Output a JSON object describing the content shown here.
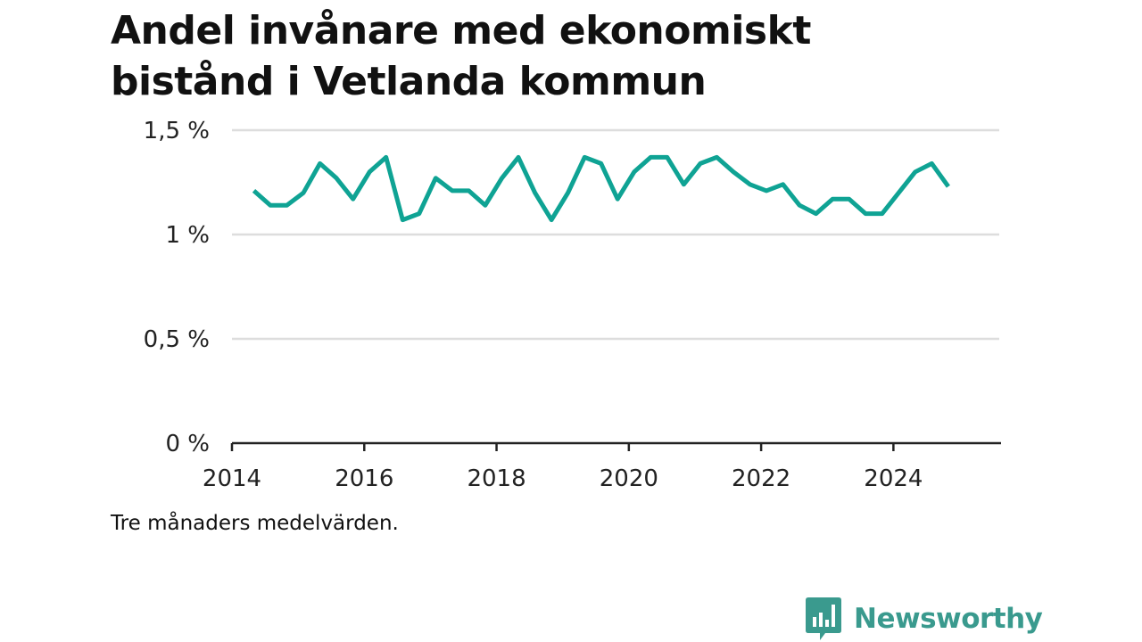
{
  "title_lines": [
    "Andel invånare med ekonomiskt",
    "bistånd i Vetlanda kommun"
  ],
  "note": "Tre månaders medelvärden.",
  "brand": {
    "name": "Newsworthy",
    "color": "#3a9a8e"
  },
  "colors": {
    "line": "#0fa394",
    "grid": "#dddddd",
    "axis": "#222222"
  },
  "chart_data": {
    "type": "line",
    "x_axis": {
      "min": 2014,
      "max": 2025.6,
      "ticks": [
        2014,
        2016,
        2018,
        2020,
        2022,
        2024
      ]
    },
    "y_axis": {
      "min": 0,
      "max": 1.5,
      "ticks": [
        0,
        0.5,
        1,
        1.5
      ],
      "tick_labels": [
        "0 %",
        "0,5 %",
        "1 %",
        "1,5 %"
      ]
    },
    "grid": "horizontal",
    "series": [
      {
        "x": [
          2014.33,
          2014.58,
          2014.83,
          2015.08,
          2015.33,
          2015.58,
          2015.83,
          2016.08,
          2016.33,
          2016.58,
          2016.83,
          2017.08,
          2017.33,
          2017.58,
          2017.83,
          2018.08,
          2018.33,
          2018.58,
          2018.83,
          2019.08,
          2019.33,
          2019.58,
          2019.83,
          2020.08,
          2020.33,
          2020.58,
          2020.83,
          2021.08,
          2021.33,
          2021.58,
          2021.83,
          2022.08,
          2022.33,
          2022.58,
          2022.83,
          2023.08,
          2023.33,
          2023.58,
          2023.83,
          2024.08,
          2024.33,
          2024.58,
          2024.83
        ],
        "values": [
          1.21,
          1.14,
          1.14,
          1.2,
          1.34,
          1.27,
          1.17,
          1.3,
          1.37,
          1.07,
          1.1,
          1.27,
          1.21,
          1.21,
          1.14,
          1.27,
          1.37,
          1.2,
          1.07,
          1.2,
          1.37,
          1.34,
          1.17,
          1.3,
          1.37,
          1.37,
          1.24,
          1.34,
          1.37,
          1.3,
          1.24,
          1.21,
          1.24,
          1.14,
          1.1,
          1.17,
          1.17,
          1.1,
          1.1,
          1.2,
          1.3,
          1.34,
          1.23
        ]
      }
    ]
  }
}
